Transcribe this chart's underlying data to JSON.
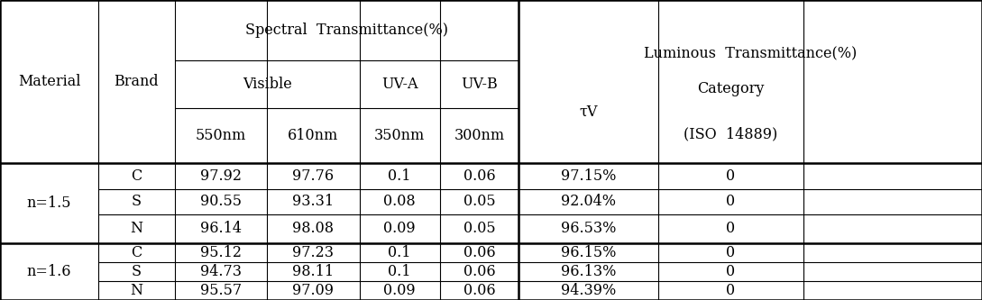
{
  "col_headers": {
    "spectral": "Spectral  Transmittance(%)",
    "luminous": "Luminous  Transmittance(%)",
    "visible": "Visible",
    "uv_a": "UV-A",
    "uv_b": "UV-B",
    "nm550": "550nm",
    "nm610": "610nm",
    "nm350": "350nm",
    "nm300": "300nm",
    "tv": "τV",
    "category_line1": "Category",
    "category_line2": "(ISO  14889)",
    "material": "Material",
    "brand": "Brand"
  },
  "rows": [
    {
      "material": "n=1.5",
      "brand": "C",
      "nm550": "97.92",
      "nm610": "97.76",
      "nm350": "0.1",
      "nm300": "0.06",
      "tv": "97.15%",
      "category": "0"
    },
    {
      "material": "n=1.5",
      "brand": "S",
      "nm550": "90.55",
      "nm610": "93.31",
      "nm350": "0.08",
      "nm300": "0.05",
      "tv": "92.04%",
      "category": "0"
    },
    {
      "material": "n=1.5",
      "brand": "N",
      "nm550": "96.14",
      "nm610": "98.08",
      "nm350": "0.09",
      "nm300": "0.05",
      "tv": "96.53%",
      "category": "0"
    },
    {
      "material": "n=1.6",
      "brand": "C",
      "nm550": "95.12",
      "nm610": "97.23",
      "nm350": "0.1",
      "nm300": "0.06",
      "tv": "96.15%",
      "category": "0"
    },
    {
      "material": "n=1.6",
      "brand": "S",
      "nm550": "94.73",
      "nm610": "98.11",
      "nm350": "0.1",
      "nm300": "0.06",
      "tv": "96.13%",
      "category": "0"
    },
    {
      "material": "n=1.6",
      "brand": "N",
      "nm550": "95.57",
      "nm610": "97.09",
      "nm350": "0.09",
      "nm300": "0.06",
      "tv": "94.39%",
      "category": "0"
    }
  ],
  "bg_color": "#ffffff",
  "line_color": "#000000",
  "text_color": "#000000",
  "col_bounds": [
    0.0,
    0.1,
    0.178,
    0.272,
    0.366,
    0.448,
    0.528,
    0.67,
    0.818,
    1.0
  ],
  "row_bounds": [
    1.0,
    0.8,
    0.64,
    0.455,
    0.37,
    0.285,
    0.19,
    0.125,
    0.063,
    0.0
  ],
  "thick_lw": 1.8,
  "thin_lw": 0.8,
  "font_size": 11.5
}
